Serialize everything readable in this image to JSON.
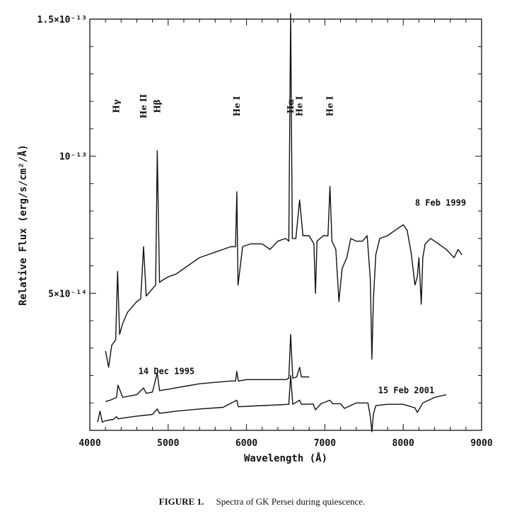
{
  "chart_data": {
    "type": "line",
    "xlabel": "Wavelength (Å)",
    "ylabel": "Relative Flux (erg/s/cm²/Å)",
    "xlim": [
      4000,
      9000
    ],
    "ylim": [
      0,
      1.5e-13
    ],
    "x_ticks": [
      4000,
      5000,
      6000,
      7000,
      8000,
      9000
    ],
    "x_tick_labels": [
      "4000",
      "5000",
      "6000",
      "7000",
      "8000",
      "9000"
    ],
    "y_ticks": [
      5e-14,
      1e-13,
      1.5e-13
    ],
    "y_tick_labels": [
      "5×10⁻¹⁴",
      "10⁻¹³",
      "1.5×10⁻¹³"
    ],
    "grid": false,
    "legend": "none",
    "annotations": [
      {
        "text": "Hγ",
        "x": 4340
      },
      {
        "text": "He II",
        "x": 4686
      },
      {
        "text": "Hβ",
        "x": 4861
      },
      {
        "text": "He I",
        "x": 5876
      },
      {
        "text": "Hα",
        "x": 6563
      },
      {
        "text": "He I",
        "x": 6678
      },
      {
        "text": "He I",
        "x": 7065
      }
    ],
    "series": [
      {
        "name": "8 Feb 1999",
        "label_position": [
          8150,
          8.2e-14
        ],
        "x": [
          4200,
          4240,
          4280,
          4330,
          4355,
          4380,
          4420,
          4480,
          4540,
          4600,
          4650,
          4686,
          4720,
          4780,
          4840,
          4861,
          4890,
          4940,
          5000,
          5100,
          5200,
          5300,
          5400,
          5500,
          5600,
          5700,
          5800,
          5860,
          5876,
          5892,
          5950,
          6050,
          6200,
          6300,
          6400,
          6500,
          6540,
          6563,
          6585,
          6630,
          6678,
          6720,
          6800,
          6860,
          6880,
          6900,
          6980,
          7040,
          7065,
          7090,
          7140,
          7180,
          7220,
          7280,
          7330,
          7400,
          7480,
          7540,
          7580,
          7600,
          7620,
          7650,
          7700,
          7800,
          7900,
          8000,
          8050,
          8100,
          8150,
          8180,
          8200,
          8230,
          8250,
          8280,
          8350,
          8450,
          8550,
          8650,
          8700,
          8750
        ],
        "y": [
          2.9e-14,
          2.3e-14,
          3.1e-14,
          3.3e-14,
          5.8e-14,
          3.5e-14,
          3.9e-14,
          4.3e-14,
          4.5e-14,
          4.7e-14,
          4.8e-14,
          6.7e-14,
          4.9e-14,
          5.1e-14,
          5.3e-14,
          1.02e-13,
          5.4e-14,
          5.5e-14,
          5.6e-14,
          5.7e-14,
          5.9e-14,
          6.1e-14,
          6.3e-14,
          6.4e-14,
          6.5e-14,
          6.6e-14,
          6.7e-14,
          6.7e-14,
          8.7e-14,
          5.3e-14,
          6.7e-14,
          6.8e-14,
          6.8e-14,
          6.6e-14,
          6.9e-14,
          7e-14,
          6.9e-14,
          1.52e-13,
          7e-14,
          7e-14,
          8.4e-14,
          7.1e-14,
          7.1e-14,
          6.8e-14,
          5e-14,
          6.9e-14,
          7.1e-14,
          7.1e-14,
          8.9e-14,
          6.9e-14,
          6.6e-14,
          4.7e-14,
          5.9e-14,
          6.3e-14,
          7e-14,
          6.9e-14,
          6.9e-14,
          7.1e-14,
          5.5e-14,
          2.6e-14,
          4.8e-14,
          6.4e-14,
          7e-14,
          7.1e-14,
          7.3e-14,
          7.5e-14,
          7.3e-14,
          6.5e-14,
          5.3e-14,
          5.6e-14,
          6.3e-14,
          4.6e-14,
          6.3e-14,
          6.8e-14,
          7e-14,
          6.8e-14,
          6.6e-14,
          6.3e-14,
          6.6e-14,
          6.4e-14
        ]
      },
      {
        "name": "14 Dec 1995",
        "label_position": [
          4620,
          2.05e-14
        ],
        "x": [
          4200,
          4260,
          4300,
          4340,
          4360,
          4420,
          4500,
          4600,
          4686,
          4720,
          4800,
          4861,
          4890,
          5000,
          5200,
          5400,
          5600,
          5800,
          5860,
          5876,
          5895,
          6000,
          6200,
          6400,
          6500,
          6540,
          6563,
          6590,
          6640,
          6678,
          6700,
          6800
        ],
        "y": [
          1.05e-14,
          1.1e-14,
          1.15e-14,
          1.2e-14,
          1.65e-14,
          1.2e-14,
          1.25e-14,
          1.3e-14,
          1.55e-14,
          1.35e-14,
          1.4e-14,
          2.1e-14,
          1.45e-14,
          1.5e-14,
          1.6e-14,
          1.7e-14,
          1.75e-14,
          1.8e-14,
          1.8e-14,
          2.15e-14,
          1.8e-14,
          1.85e-14,
          1.85e-14,
          1.85e-14,
          1.85e-14,
          1.9e-14,
          3.5e-14,
          1.9e-14,
          1.95e-14,
          2.3e-14,
          1.95e-14,
          1.95e-14
        ]
      },
      {
        "name": "15 Feb 2001",
        "label_position": [
          7680,
          1.35e-14
        ],
        "x": [
          4100,
          4130,
          4160,
          4200,
          4300,
          4340,
          4360,
          4450,
          4600,
          4800,
          4861,
          4890,
          5100,
          5400,
          5700,
          5876,
          5895,
          6100,
          6400,
          6540,
          6563,
          6590,
          6678,
          6700,
          6850,
          6880,
          6950,
          7065,
          7100,
          7200,
          7250,
          7400,
          7550,
          7580,
          7600,
          7620,
          7650,
          7800,
          8000,
          8150,
          8180,
          8250,
          8400,
          8550
        ],
        "y": [
          3e-15,
          7e-15,
          3e-15,
          3.5e-15,
          4e-15,
          5e-15,
          4.2e-15,
          4.6e-15,
          5.2e-15,
          5.8e-15,
          7.8e-15,
          6.2e-15,
          7e-15,
          7.8e-15,
          8.4e-15,
          1.1e-14,
          8.6e-15,
          8.9e-15,
          9.3e-15,
          9.5e-15,
          2e-14,
          9.5e-15,
          1.1e-14,
          9.5e-15,
          9.6e-15,
          7.5e-15,
          9.7e-15,
          1.1e-14,
          9.7e-15,
          9.7e-15,
          8e-15,
          1e-14,
          1e-14,
          5e-15,
          -5e-16,
          6e-15,
          9e-15,
          9.5e-15,
          9.5e-15,
          8.2e-15,
          6.5e-15,
          1e-14,
          1.2e-14,
          1.3e-14
        ]
      }
    ]
  },
  "caption": {
    "label": "FIGURE 1.",
    "text": "Spectra of GK Persei during quiescence."
  }
}
